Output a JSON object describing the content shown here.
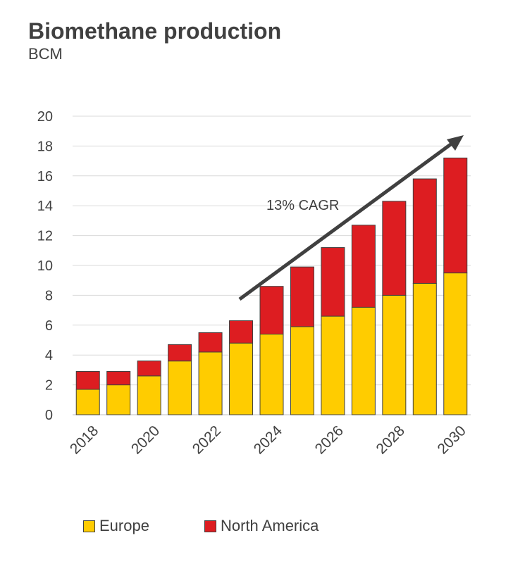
{
  "chart_data": {
    "type": "bar",
    "stacked": true,
    "title": "Biomethane production",
    "subtitle": "BCM",
    "categories": [
      "2018",
      "2019",
      "2020",
      "2021",
      "2022",
      "2023",
      "2024",
      "2025",
      "2026",
      "2027",
      "2028",
      "2029",
      "2030"
    ],
    "x_tick_labels": [
      "2018",
      "2020",
      "2022",
      "2024",
      "2026",
      "2028",
      "2030"
    ],
    "series": [
      {
        "name": "Europe",
        "color": "#FFCC00",
        "values": [
          1.7,
          2.0,
          2.6,
          3.6,
          4.2,
          4.8,
          5.4,
          5.9,
          6.6,
          7.2,
          8.0,
          8.8,
          9.5
        ]
      },
      {
        "name": "North America",
        "color": "#DD1D21",
        "values": [
          1.2,
          0.9,
          1.0,
          1.1,
          1.3,
          1.5,
          3.2,
          4.0,
          4.6,
          5.5,
          6.3,
          7.0,
          7.7
        ]
      }
    ],
    "ylim": [
      0,
      20
    ],
    "yticks": [
      0,
      2,
      4,
      6,
      8,
      10,
      12,
      14,
      16,
      18,
      20
    ],
    "grid": true,
    "legend_position": "bottom",
    "annotation": {
      "text": "13% CAGR",
      "arrow": true
    }
  }
}
